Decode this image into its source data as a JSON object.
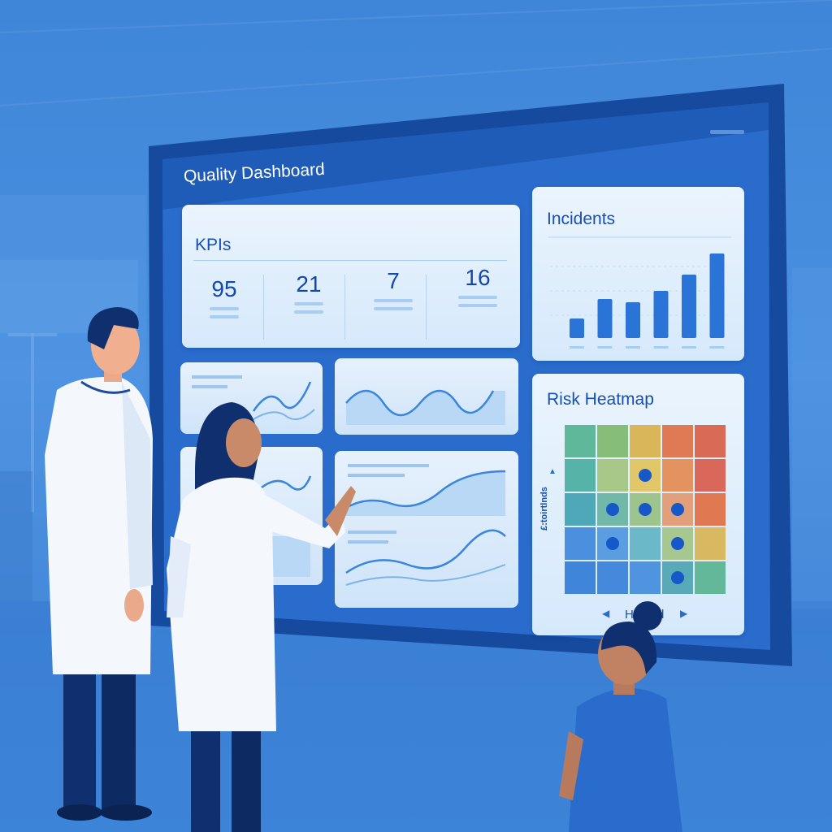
{
  "dashboard": {
    "title": "Quality Dashboard",
    "kpis": {
      "title": "KPIs",
      "values": [
        "95",
        "21",
        "7",
        "16"
      ]
    },
    "incidents": {
      "title": "Incidents",
      "bars": [
        24,
        48,
        44,
        58,
        78,
        104
      ]
    },
    "heatmap": {
      "title": "Risk Heatmap",
      "y_label": "£:toirtlnds",
      "x_label": "Hazard",
      "cells": [
        [
          "#5fb89a",
          "#86bd78",
          "#d9b65a",
          "#e07a55",
          "#d96a55"
        ],
        [
          "#55b3a8",
          "#a8c88a",
          "#e0c86a",
          "#e4925f",
          "#d9685a"
        ],
        [
          "#4fa8b8",
          "#72b8a8",
          "#9ec48e",
          "#e2a07a",
          "#e07852"
        ],
        [
          "#4a90de",
          "#5a9de0",
          "#6ab8c8",
          "#a6c890",
          "#d8b860"
        ],
        [
          "#3f86da",
          "#4589dc",
          "#4f94de",
          "#58aab8",
          "#62b898"
        ]
      ],
      "dots": [
        [
          1,
          2
        ],
        [
          2,
          1
        ],
        [
          2,
          2
        ],
        [
          2,
          3
        ],
        [
          3,
          1
        ],
        [
          3,
          3
        ],
        [
          4,
          3
        ]
      ]
    }
  },
  "colors": {
    "accent": "#1450b4",
    "background": "#4a90e0",
    "bar": "#2a74d8",
    "frame": "#154a9e"
  }
}
